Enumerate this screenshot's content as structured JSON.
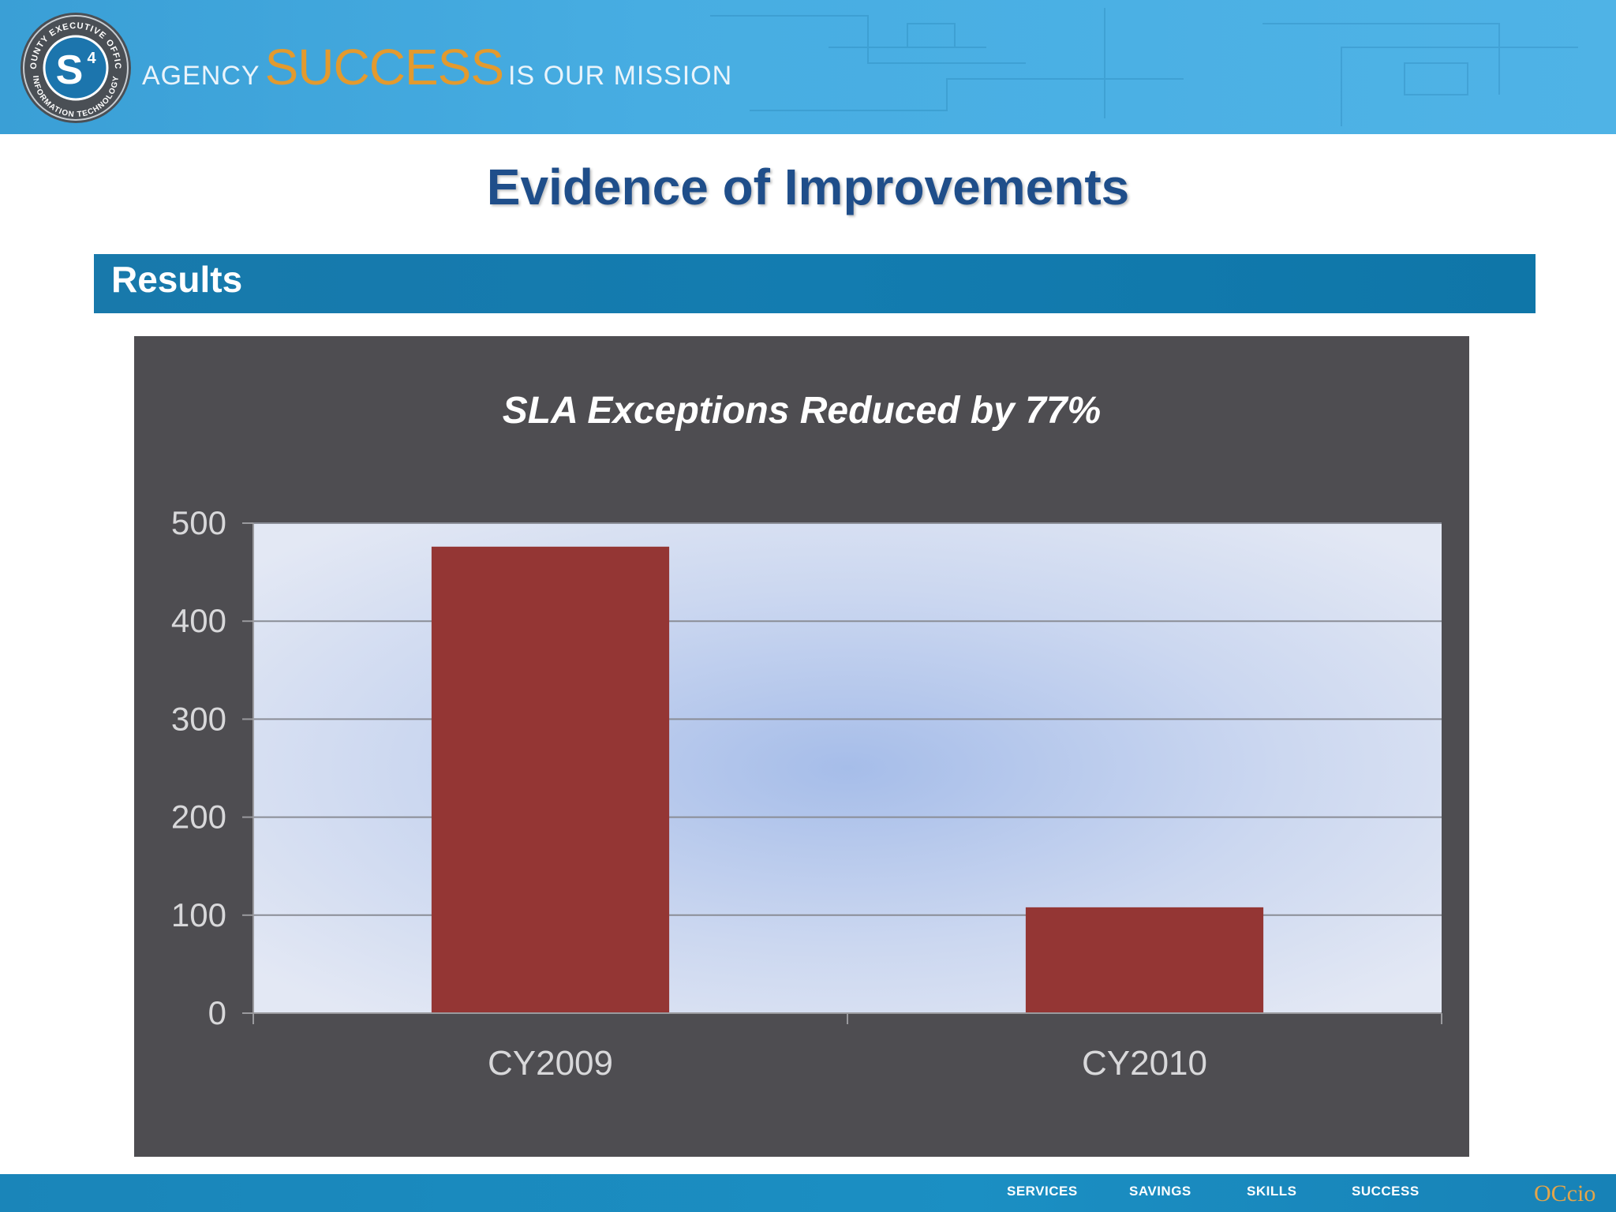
{
  "banner": {
    "seal_top_text": "COUNTY EXECUTIVE OFFICE",
    "seal_bottom_text": "INFORMATION TECHNOLOGY",
    "seal_mark": "S4",
    "tagline_agency": "AGENCY",
    "tagline_success": "SUCCESS",
    "tagline_mission": "IS OUR MISSION"
  },
  "page_title": "Evidence of Improvements",
  "section_label": "Results",
  "chart_data": {
    "type": "bar",
    "title": "SLA Exceptions Reduced by 77%",
    "categories": [
      "CY2009",
      "CY2010"
    ],
    "values": [
      476,
      108
    ],
    "ylim": [
      0,
      500
    ],
    "yticks": [
      0,
      100,
      200,
      300,
      400,
      500
    ],
    "xlabel": "",
    "ylabel": "",
    "grid": true,
    "legend": "none",
    "bar_color": "#943634",
    "plot_background": "#d3ddf2",
    "panel_background": "#4e4d51"
  },
  "footer": {
    "links": [
      "SERVICES",
      "SAVINGS",
      "SKILLS",
      "SUCCESS"
    ],
    "logo_text": "OCcio"
  }
}
